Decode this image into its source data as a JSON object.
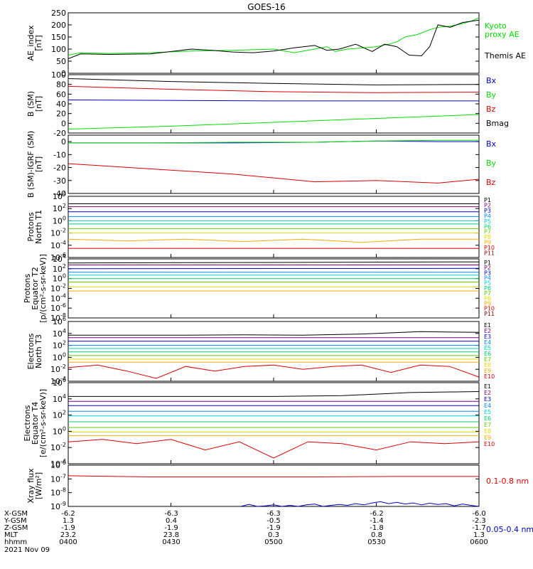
{
  "title": "GOES-16",
  "footer": {
    "rows": [
      {
        "label": "X-GSM",
        "values": [
          "-6.2",
          "-6.3",
          "-6.3",
          "-6.2",
          "-6.0"
        ]
      },
      {
        "label": "Y-GSM",
        "values": [
          "1.3",
          "0.4",
          "-0.5",
          "-1.4",
          "-2.3"
        ]
      },
      {
        "label": "Z-GSM",
        "values": [
          "-1.9",
          "-1.9",
          "-1.9",
          "-1.8",
          "-1.7"
        ]
      },
      {
        "label": "MLT",
        "values": [
          "23.2",
          "23.8",
          "0.3",
          "0.8",
          "1.3"
        ]
      },
      {
        "label": "hhmm",
        "values": [
          "0400",
          "0430",
          "0500",
          "0530",
          "0600"
        ]
      }
    ],
    "date": "2021 Nov 09"
  },
  "colors": {
    "black": "#000000",
    "green": "#00dd00",
    "blue": "#0000cc",
    "red": "#dd0000",
    "P": [
      "#000000",
      "#7a0080",
      "#0000cc",
      "#0088ff",
      "#00cccc",
      "#00cc66",
      "#66cc00",
      "#dddd00",
      "#ffaa00",
      "#dd0000",
      "#880000"
    ],
    "E": [
      "#000000",
      "#7a0080",
      "#0000cc",
      "#0088ff",
      "#00cccc",
      "#00cc66",
      "#66cc00",
      "#dddd00",
      "#ffaa00",
      "#dd0000",
      "#880000"
    ]
  },
  "chart_data": [
    {
      "type": "line",
      "ylabel": "AE_index\n[nT]",
      "ylim": [
        0,
        250
      ],
      "yticks": [
        "0",
        "50",
        "100",
        "150",
        "200",
        "250"
      ],
      "x_time_range": [
        "0400",
        "0600"
      ],
      "series": [
        {
          "name": "Kyoto\nproxy AE",
          "color": "green",
          "t": [
            0,
            0.03,
            0.1,
            0.2,
            0.3,
            0.4,
            0.5,
            0.55,
            0.6,
            0.63,
            0.65,
            0.68,
            0.72,
            0.75,
            0.78,
            0.8,
            0.82,
            0.85,
            0.88,
            0.9,
            0.93,
            0.96,
            0.98,
            1.0
          ],
          "values": [
            75,
            85,
            82,
            85,
            92,
            95,
            100,
            85,
            100,
            110,
            90,
            100,
            105,
            110,
            120,
            130,
            150,
            160,
            180,
            190,
            195,
            205,
            215,
            230
          ]
        },
        {
          "name": "Themis AE",
          "color": "black",
          "t": [
            0,
            0.03,
            0.1,
            0.2,
            0.3,
            0.35,
            0.4,
            0.45,
            0.5,
            0.55,
            0.6,
            0.63,
            0.66,
            0.7,
            0.74,
            0.77,
            0.8,
            0.83,
            0.86,
            0.88,
            0.9,
            0.93,
            0.96,
            1.0
          ],
          "values": [
            60,
            80,
            78,
            80,
            100,
            95,
            88,
            85,
            92,
            105,
            115,
            95,
            100,
            120,
            90,
            120,
            110,
            75,
            72,
            110,
            200,
            190,
            210,
            220
          ]
        }
      ]
    },
    {
      "type": "line",
      "ylabel": "B (SM)\n[nT]",
      "ylim": [
        -20,
        100
      ],
      "yticks": [
        "-20",
        "0",
        "20",
        "40",
        "60",
        "80",
        "100"
      ],
      "series": [
        {
          "name": "Bx",
          "color": "blue",
          "t": [
            0,
            0.5,
            1
          ],
          "values": [
            48,
            46,
            46
          ]
        },
        {
          "name": "By",
          "color": "green",
          "t": [
            0,
            0.25,
            0.5,
            0.75,
            1
          ],
          "values": [
            -12,
            -6,
            2,
            10,
            18
          ]
        },
        {
          "name": "Bz",
          "color": "red",
          "t": [
            0,
            0.25,
            0.5,
            0.75,
            1
          ],
          "values": [
            76,
            70,
            65,
            63,
            64
          ]
        },
        {
          "name": "Bmag",
          "color": "black",
          "t": [
            0,
            0.25,
            0.5,
            0.75,
            1
          ],
          "values": [
            92,
            86,
            82,
            79,
            80
          ]
        }
      ]
    },
    {
      "type": "line",
      "ylabel": "B (SM)-IGRF (SM)\n[nT]",
      "ylim": [
        -40,
        5
      ],
      "yticks": [
        "-40",
        "-30",
        "-20",
        "-10",
        "0"
      ],
      "series": [
        {
          "name": "Bx",
          "color": "blue",
          "t": [
            0,
            0.2,
            0.4,
            0.6,
            0.75,
            0.9,
            1
          ],
          "values": [
            -1,
            -1,
            -1,
            -0.5,
            0.5,
            0,
            0
          ]
        },
        {
          "name": "By",
          "color": "green",
          "t": [
            0,
            0.2,
            0.4,
            0.6,
            0.75,
            0.9,
            1
          ],
          "values": [
            -1,
            -1,
            -0.5,
            -0.5,
            0.5,
            1,
            1
          ]
        },
        {
          "name": "Bz",
          "color": "red",
          "t": [
            0,
            0.1,
            0.25,
            0.4,
            0.5,
            0.6,
            0.75,
            0.9,
            1
          ],
          "values": [
            -17,
            -19,
            -22,
            -25,
            -28,
            -31,
            -30,
            -32,
            -29
          ]
        }
      ]
    },
    {
      "type": "line",
      "ylabel": "Protons\nNorth T1",
      "yscale": "log",
      "ylim": [
        "1e-6",
        "1e4"
      ],
      "yticks": [
        "10^4",
        "10^2",
        "10^0",
        "10^-2",
        "10^-4",
        "10^-6"
      ],
      "series": [
        {
          "name": "P1",
          "color_index": 0,
          "values": [
            600,
            600
          ]
        },
        {
          "name": "P2",
          "color_index": 1,
          "values": [
            200,
            200
          ]
        },
        {
          "name": "P3",
          "color_index": 2,
          "values": [
            30,
            30
          ]
        },
        {
          "name": "P4",
          "color_index": 3,
          "values": [
            5,
            5
          ]
        },
        {
          "name": "P5",
          "color_index": 4,
          "values": [
            1,
            1
          ]
        },
        {
          "name": "P6",
          "color_index": 5,
          "values": [
            0.3,
            0.3
          ]
        },
        {
          "name": "P7",
          "color_index": 6,
          "values": [
            0.05,
            0.05
          ]
        },
        {
          "name": "P8",
          "color_index": 7,
          "values": [
            0.01,
            0.01
          ]
        },
        {
          "name": "P9",
          "color_index": 8,
          "values": [
            0.001,
            0.0005,
            0.001,
            0.0004,
            0.001,
            0.0003,
            0.001,
            0.001
          ]
        },
        {
          "name": "P10",
          "color_index": 9,
          "values": [
            3e-05,
            3e-05
          ]
        },
        {
          "name": "P11",
          "color_index": 10,
          "values": []
        }
      ]
    },
    {
      "type": "line",
      "ylabel": "Protons\nEquator T2\n[p/(cm²-s-sr-keV)]",
      "yscale": "log",
      "ylim": [
        "1e-8",
        "1e4"
      ],
      "yticks": [
        "10^4",
        "10^2",
        "10^0",
        "10^-2",
        "10^-4",
        "10^-6",
        "10^-8"
      ],
      "series": [
        {
          "name": "P1",
          "color_index": 0,
          "values": [
            1500,
            2500
          ]
        },
        {
          "name": "P2",
          "color_index": 1,
          "values": [
            600,
            600
          ]
        },
        {
          "name": "P3",
          "color_index": 2,
          "values": [
            100,
            120
          ]
        },
        {
          "name": "P4",
          "color_index": 3,
          "values": [
            20,
            20
          ]
        },
        {
          "name": "P5",
          "color_index": 4,
          "values": [
            5,
            5
          ]
        },
        {
          "name": "P6",
          "color_index": 5,
          "values": [
            1,
            1
          ]
        },
        {
          "name": "P7",
          "color_index": 6,
          "values": [
            0.2,
            0.2
          ]
        },
        {
          "name": "P8",
          "color_index": 7,
          "values": [
            0.02,
            0.02
          ]
        },
        {
          "name": "P9",
          "color_index": 8,
          "values": [
            0.003,
            0.003
          ]
        },
        {
          "name": "P10",
          "color_index": 9,
          "values": []
        },
        {
          "name": "P11",
          "color_index": 10,
          "values": []
        }
      ]
    },
    {
      "type": "line",
      "ylabel": "Electrons\nNorth T3",
      "yscale": "log",
      "ylim": [
        "1e-4",
        "1e6"
      ],
      "yticks": [
        "10^6",
        "10^4",
        "10^2",
        "10^0",
        "10^-2",
        "10^-4"
      ],
      "series": [
        {
          "name": "E1",
          "color_index": 0,
          "values": [
            5000,
            5000,
            5000,
            6000,
            5000,
            8000,
            20000,
            15000
          ]
        },
        {
          "name": "E2",
          "color_index": 1,
          "values": [
            2000,
            2000
          ]
        },
        {
          "name": "E3",
          "color_index": 2,
          "values": [
            500,
            500
          ]
        },
        {
          "name": "E4",
          "color_index": 3,
          "values": [
            100,
            100
          ]
        },
        {
          "name": "E5",
          "color_index": 4,
          "values": [
            30,
            30
          ]
        },
        {
          "name": "E6",
          "color_index": 5,
          "values": [
            8,
            8
          ]
        },
        {
          "name": "E7",
          "color_index": 6,
          "values": [
            2,
            2
          ]
        },
        {
          "name": "E8",
          "color_index": 7,
          "values": [
            0.5,
            0.5
          ]
        },
        {
          "name": "E9",
          "color_index": 8,
          "values": [
            0.15,
            0.15
          ]
        },
        {
          "name": "E10",
          "color_index": 9,
          "values": [
            0.02,
            0.05,
            0.005,
            0.0003,
            0.03,
            0.005,
            0.03,
            0.05,
            0.01,
            0.03,
            0.05,
            0.003,
            0.05,
            0.03,
            0.0005
          ]
        }
      ]
    },
    {
      "type": "line",
      "ylabel": "Electrons\nEquator T4\n[e/(cm²-s-sr-keV)]",
      "yscale": "log",
      "ylim": [
        "1e-4",
        "1e6"
      ],
      "yticks": [
        "10^6",
        "10^4",
        "10^2",
        "10^0",
        "10^-2",
        "10^-4"
      ],
      "series": [
        {
          "name": "E1",
          "color_index": 0,
          "values": [
            20000,
            20000,
            20000,
            20000,
            25000,
            60000,
            80000
          ]
        },
        {
          "name": "E2",
          "color_index": 1,
          "values": [
            5000,
            5000
          ]
        },
        {
          "name": "E3",
          "color_index": 2,
          "values": [
            1500,
            1500
          ]
        },
        {
          "name": "E4",
          "color_index": 3,
          "values": [
            300,
            300
          ]
        },
        {
          "name": "E5",
          "color_index": 4,
          "values": [
            80,
            80
          ]
        },
        {
          "name": "E6",
          "color_index": 5,
          "values": [
            15,
            15
          ]
        },
        {
          "name": "E7",
          "color_index": 6,
          "values": [
            3,
            3
          ]
        },
        {
          "name": "E8",
          "color_index": 7,
          "values": [
            0.8,
            0.8
          ]
        },
        {
          "name": "E9",
          "color_index": 8,
          "values": [
            0.3,
            0.3
          ]
        },
        {
          "name": "E10",
          "color_index": 9,
          "values": [
            0.05,
            0.1,
            0.03,
            0.1,
            0.005,
            0.05,
            0.0005,
            0.05,
            0.03,
            0.005,
            0.05,
            0.03,
            0.05
          ]
        }
      ]
    },
    {
      "type": "line",
      "ylabel": "Xray flux\n[W/m²]",
      "yscale": "log",
      "ylim": [
        "1e-9",
        "1e-6"
      ],
      "yticks": [
        "10^-6",
        "10^-7",
        "10^-8",
        "10^-9"
      ],
      "series": [
        {
          "name": "0.1-0.8 nm",
          "color": "red",
          "values": [
            1.7e-07,
            1.4e-07,
            1.4e-07,
            1.4e-07,
            1.5e-07,
            1.5e-07
          ]
        },
        {
          "name": "0.05-0.4 nm",
          "color": "blue",
          "t": [
            0.42,
            0.44,
            0.46,
            0.48,
            0.5,
            0.52,
            0.54,
            0.56,
            0.58,
            0.6,
            0.62,
            0.64,
            0.66,
            0.68,
            0.7,
            0.72,
            0.74,
            0.76,
            0.78,
            0.8,
            0.82,
            0.84,
            0.86,
            0.88,
            0.9,
            0.92,
            0.94,
            0.96,
            0.98,
            1.0
          ],
          "values": [
            1e-09,
            1.4e-09,
            1e-09,
            1.1e-09,
            1.3e-09,
            1e-09,
            1.2e-09,
            1e-09,
            1.3e-09,
            1.5e-09,
            1e-09,
            1.2e-09,
            1.4e-09,
            1.2e-09,
            1.6e-09,
            1.3e-09,
            1.8e-09,
            2.2e-09,
            1.6e-09,
            2e-09,
            1.5e-09,
            1.8e-09,
            1.3e-09,
            1.7e-09,
            1.4e-09,
            1.6e-09,
            1.1e-09,
            1.5e-09,
            1.2e-09,
            1e-09
          ]
        }
      ]
    }
  ]
}
